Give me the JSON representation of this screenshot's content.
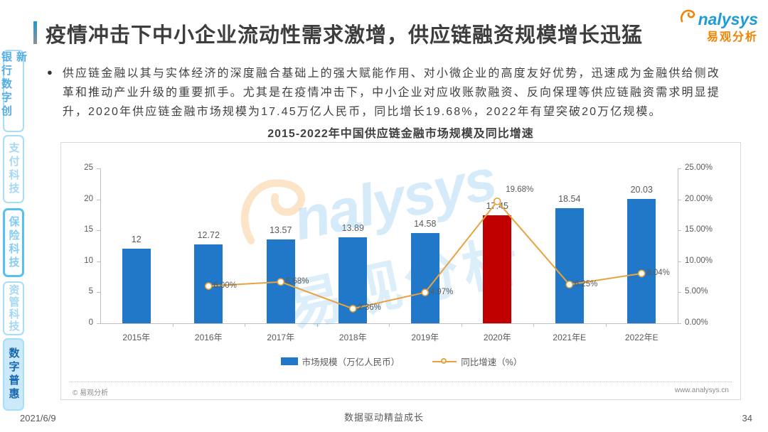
{
  "page": {
    "title": "疫情冲击下中小企业流动性需求激增，供应链融资规模增长迅猛",
    "date": "2021/6/9",
    "footer_slogan": "数据驱动精益成长",
    "page_number": "34"
  },
  "logo": {
    "en": "nalysys",
    "cn": "易观分析"
  },
  "sidebar": {
    "items": [
      {
        "label": "银行数字创新",
        "state": "normal"
      },
      {
        "label": "支付科技",
        "state": "dimmed"
      },
      {
        "label": "保险科技",
        "state": "outlined"
      },
      {
        "label": "资管科技",
        "state": "dimmed"
      },
      {
        "label": "数字普惠",
        "state": "active"
      }
    ]
  },
  "body": {
    "bullet": "●",
    "text": "供应链金融以其与实体经济的深度融合基础上的强大赋能作用、对小微企业的高度友好优势，迅速成为金融供给侧改革和推动产业升级的重要抓手。尤其是在疫情冲击下，中小企业对应收账款融资、反向保理等供应链融资需求明显提升，2020年供应链金融市场规模为17.45万亿人民币，同比增长19.68%，2022年有望突破20万亿规模。"
  },
  "chart": {
    "source": "© 易观分析",
    "website": "www.analysys.cn",
    "watermark_en": "nalysys",
    "watermark_cn": "易观分析"
  },
  "chart_data": {
    "type": "bar+line",
    "title": "2015-2022年中国供应链金融市场规模及同比增速",
    "categories": [
      "2015年",
      "2016年",
      "2017年",
      "2018年",
      "2019年",
      "2020年",
      "2021年E",
      "2022年E"
    ],
    "series": [
      {
        "name": "市场规模（万亿人民币）",
        "type": "bar",
        "values": [
          12,
          12.72,
          13.57,
          13.89,
          14.58,
          17.45,
          18.54,
          20.03
        ],
        "value_labels": [
          "12",
          "12.72",
          "13.57",
          "13.89",
          "14.58",
          "17.45",
          "18.54",
          "20.03"
        ],
        "colors": [
          "#2278c8",
          "#2278c8",
          "#2278c8",
          "#2278c8",
          "#2278c8",
          "#c00000",
          "#2278c8",
          "#2278c8"
        ]
      },
      {
        "name": "同比增速（%）",
        "type": "line",
        "values": [
          null,
          6.0,
          6.68,
          2.36,
          4.97,
          19.68,
          6.25,
          8.04
        ],
        "value_labels": [
          null,
          "6.00%",
          "6.68%",
          "2.36%",
          "4.97%",
          "19.68%",
          "6.25%",
          "8.04%"
        ],
        "color": "#e8a33d"
      }
    ],
    "left_axis": {
      "ticks": [
        "25",
        "20",
        "15",
        "10",
        "5",
        "0"
      ],
      "min": 0,
      "max": 25
    },
    "right_axis": {
      "ticks": [
        "25.00%",
        "20.00%",
        "15.00%",
        "10.00%",
        "5.00%",
        "0.00%"
      ],
      "min": 0,
      "max": 25
    },
    "bar_color": "#2278c8",
    "highlight_color": "#c00000",
    "line_color": "#e8a33d",
    "legend_position": "bottom",
    "grid": false
  }
}
